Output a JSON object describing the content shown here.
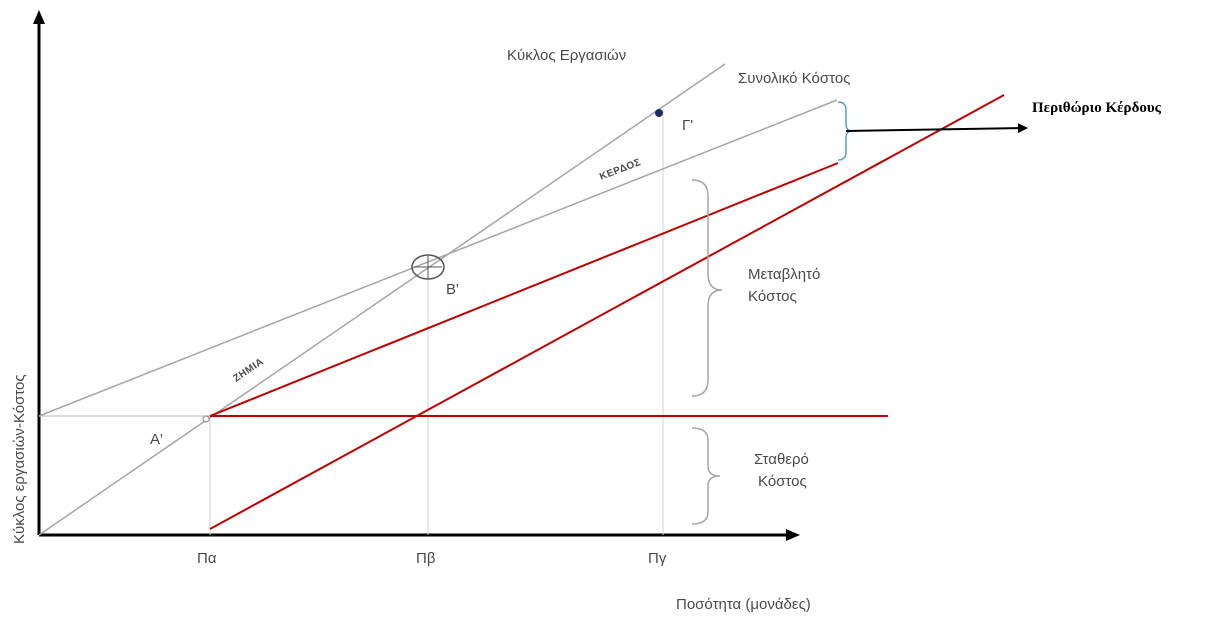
{
  "labels": {
    "revenue_line": "Κύκλος Εργασιών",
    "total_cost_line": "Συνολικό Κόστος",
    "profit_margin": "Περιθώριο Κέρδους",
    "profit_zone": "ΚΕΡΔΟΣ",
    "loss_zone": "ΖΗΜΙΑ",
    "variable_cost_1": "Μεταβλητό",
    "variable_cost_2": "Κόστος",
    "fixed_cost_1": "Σταθερό",
    "fixed_cost_2": "Κόστος",
    "y_axis": "Κύκλος εργασιών-Κόστος",
    "x_axis": "Ποσότητα (μονάδες)",
    "point_a": "Α'",
    "point_b": "Β'",
    "point_c": "Γ'",
    "tick_a": "Πα",
    "tick_b": "Πβ",
    "tick_c": "Πγ"
  },
  "colors": {
    "axis": "#000000",
    "gray_line": "#a6a6a6",
    "red_line": "#c00000",
    "brace_gray": "#a6a6a6",
    "brace_blue": "#5b9bd5",
    "point": "#1f2a6b"
  }
}
